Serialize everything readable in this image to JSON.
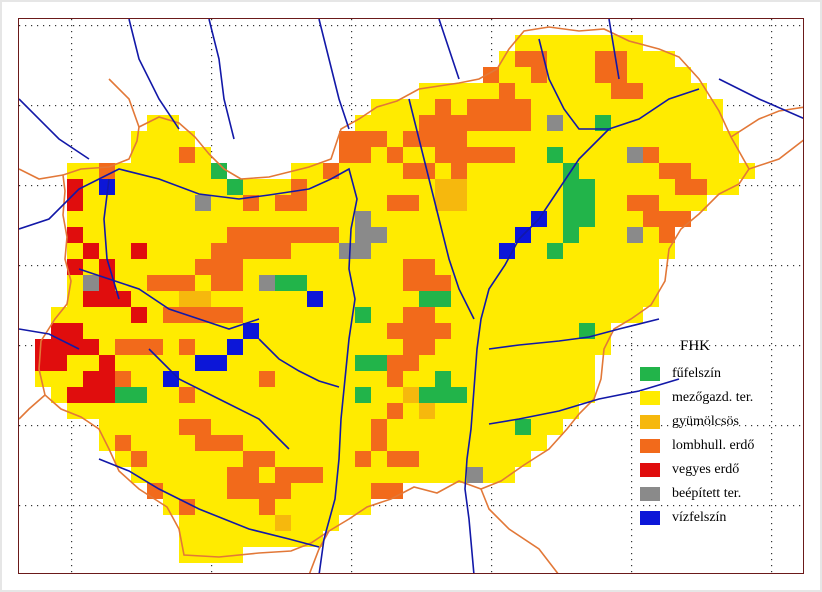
{
  "legend": {
    "title": "FHK",
    "items": [
      {
        "label": "fűfelszín",
        "color": "#22b44a",
        "key": "grass"
      },
      {
        "label": "mezőgazd. ter.",
        "color": "#ffeb00",
        "key": "agri"
      },
      {
        "label": "gyümölcsös",
        "color": "#f6b80d",
        "key": "orchard"
      },
      {
        "label": "lombhull. erdő",
        "color": "#f26a1b",
        "key": "forest"
      },
      {
        "label": "vegyes erdő",
        "color": "#e00d0d",
        "key": "mixed"
      },
      {
        "label": "beépített ter.",
        "color": "#8a8a8a",
        "key": "built"
      },
      {
        "label": "vízfelszín",
        "color": "#0c16d8",
        "key": "water"
      }
    ]
  },
  "colors": {
    "river": "#1218a8",
    "border": "#e27838",
    "grid_dots": "#333333",
    "frame": "#6b1a1a"
  }
}
